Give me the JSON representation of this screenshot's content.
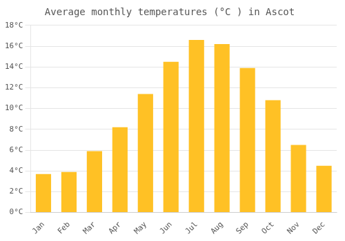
{
  "chart_data": {
    "type": "bar",
    "title": "Average monthly temperatures (°C ) in Ascot",
    "categories": [
      "Jan",
      "Feb",
      "Mar",
      "Apr",
      "May",
      "Jun",
      "Jul",
      "Aug",
      "Sep",
      "Oct",
      "Nov",
      "Dec"
    ],
    "values": [
      3.7,
      3.9,
      5.9,
      8.2,
      11.4,
      14.5,
      16.6,
      16.2,
      13.9,
      10.8,
      6.5,
      4.5
    ],
    "color": "#FFC125",
    "ylim": [
      0,
      18
    ],
    "yticks": [
      {
        "value": 0,
        "label": "0°C"
      },
      {
        "value": 2,
        "label": "2°C"
      },
      {
        "value": 4,
        "label": "4°C"
      },
      {
        "value": 6,
        "label": "6°C"
      },
      {
        "value": 8,
        "label": "8°C"
      },
      {
        "value": 10,
        "label": "10°C"
      },
      {
        "value": 12,
        "label": "12°C"
      },
      {
        "value": 14,
        "label": "14°C"
      },
      {
        "value": 16,
        "label": "16°C"
      },
      {
        "value": 18,
        "label": "18°C"
      }
    ],
    "grid": true
  }
}
